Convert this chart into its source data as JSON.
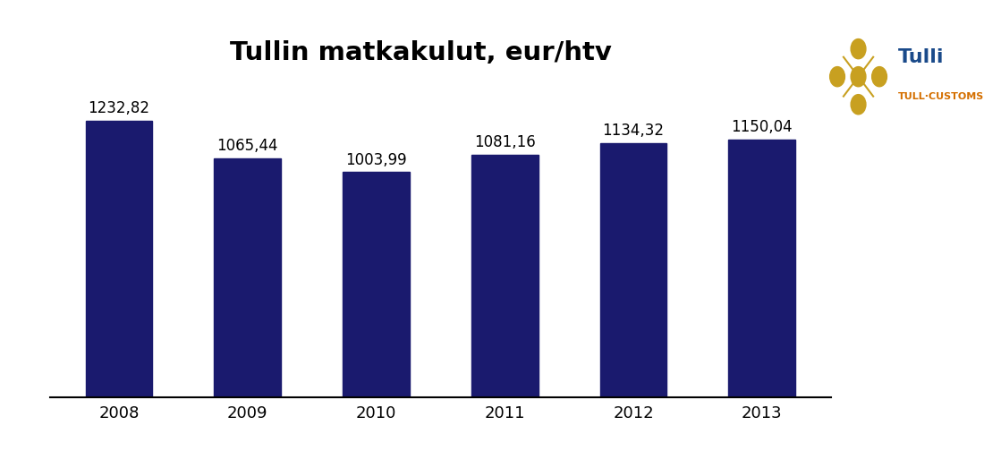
{
  "title": "Tullin matkakulut, eur/htv",
  "categories": [
    "2008",
    "2009",
    "2010",
    "2011",
    "2012",
    "2013"
  ],
  "values": [
    1232.82,
    1065.44,
    1003.99,
    1081.16,
    1134.32,
    1150.04
  ],
  "labels": [
    "1232,82",
    "1065,44",
    "1003,99",
    "1081,16",
    "1134,32",
    "1150,04"
  ],
  "bar_color": "#1a1a6e",
  "background_color": "#ffffff",
  "title_fontsize": 21,
  "label_fontsize": 12,
  "tick_fontsize": 13,
  "ylim": [
    0,
    1450
  ],
  "bar_width": 0.52,
  "logo_box_color": "#1a4a8a",
  "logo_text_color": "#1a4a8a",
  "logo_sub_color": "#d46f00",
  "logo_emblem_color": "#c8a020"
}
